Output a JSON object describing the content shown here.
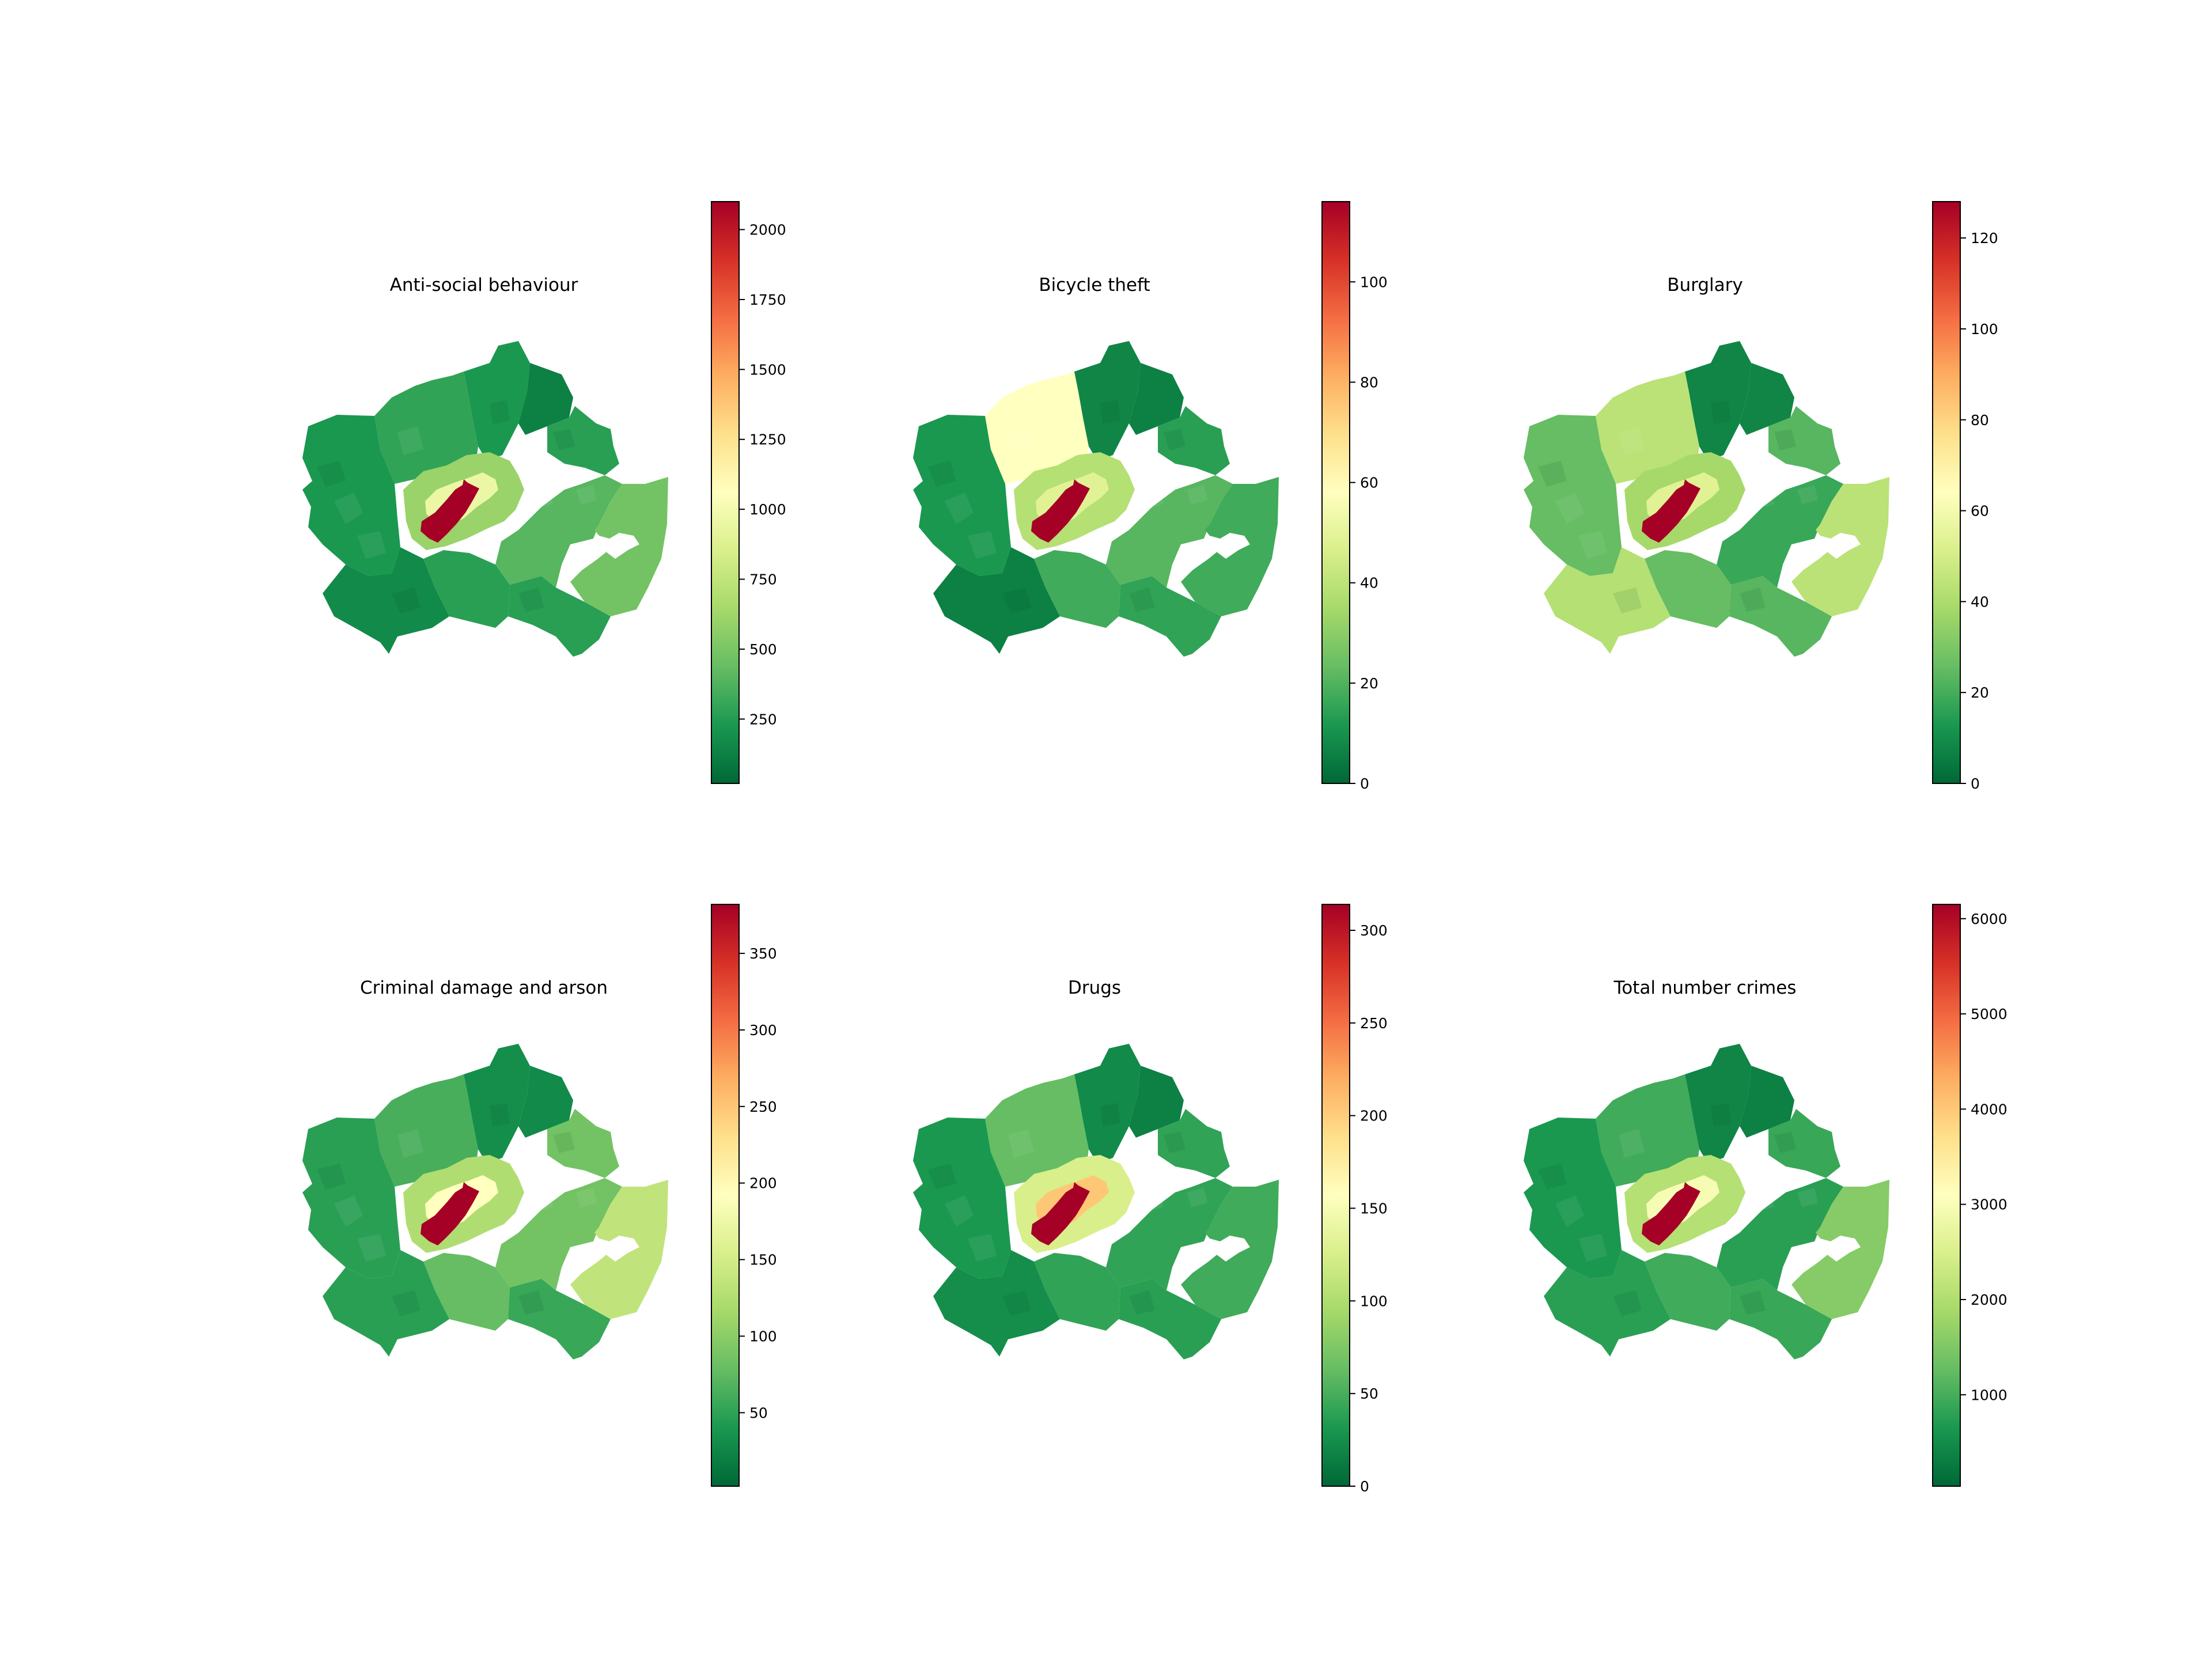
{
  "colormap": {
    "name": "RdYlGn_r",
    "stops": [
      "#006837",
      "#1a9850",
      "#66bd63",
      "#a6d96a",
      "#d9ef8b",
      "#ffffbf",
      "#fee08b",
      "#fdae61",
      "#f46d43",
      "#d73027",
      "#a50026"
    ]
  },
  "maps": [
    {
      "id": "anti-social-behaviour",
      "title": "Anti-social behaviour",
      "vmin": 20,
      "vmax": 2100,
      "ticks": [
        250,
        500,
        750,
        1000,
        1250,
        1500,
        1750,
        2000
      ],
      "tick_labels": [
        "250",
        "500",
        "750",
        "1000",
        "1250",
        "1500",
        "1750",
        "2000"
      ],
      "regions": {
        "north_west": 0.13,
        "north_centre": 0.1,
        "north_east": 0.05,
        "top_east": 0.12,
        "west": 0.1,
        "south_west": 0.07,
        "south_centre": 0.12,
        "south_east": 0.12,
        "east": 0.18,
        "far_east": 0.22,
        "inner_ring": 0.28,
        "inner_core": 0.45,
        "centre": 1.0
      }
    },
    {
      "id": "bicycle-theft",
      "title": "Bicycle theft",
      "vmin": 0,
      "vmax": 116,
      "ticks": [
        0,
        20,
        40,
        60,
        80,
        100
      ],
      "tick_labels": [
        "0",
        "20",
        "40",
        "60",
        "80",
        "100"
      ],
      "regions": {
        "north_west": 0.5,
        "north_centre": 0.06,
        "north_east": 0.05,
        "top_east": 0.12,
        "west": 0.1,
        "south_west": 0.05,
        "south_centre": 0.15,
        "south_east": 0.13,
        "east": 0.18,
        "far_east": 0.15,
        "inner_ring": 0.33,
        "inner_core": 0.42,
        "centre": 1.0
      }
    },
    {
      "id": "burglary",
      "title": "Burglary",
      "vmin": 0,
      "vmax": 128,
      "ticks": [
        0,
        20,
        40,
        60,
        80,
        100,
        120
      ],
      "tick_labels": [
        "0",
        "20",
        "40",
        "60",
        "80",
        "100",
        "120"
      ],
      "regions": {
        "north_west": 0.34,
        "north_centre": 0.06,
        "north_east": 0.06,
        "top_east": 0.18,
        "west": 0.2,
        "south_west": 0.33,
        "south_centre": 0.2,
        "south_east": 0.18,
        "east": 0.14,
        "far_east": 0.34,
        "inner_ring": 0.3,
        "inner_core": 0.42,
        "centre": 1.0
      }
    },
    {
      "id": "criminal-damage-and-arson",
      "title": "Criminal damage and arson",
      "vmin": 2,
      "vmax": 382,
      "ticks": [
        50,
        100,
        150,
        200,
        250,
        300,
        350
      ],
      "tick_labels": [
        "50",
        "100",
        "150",
        "200",
        "250",
        "300",
        "350"
      ],
      "regions": {
        "north_west": 0.16,
        "north_centre": 0.08,
        "north_east": 0.07,
        "top_east": 0.22,
        "west": 0.12,
        "south_west": 0.12,
        "south_centre": 0.2,
        "south_east": 0.14,
        "east": 0.22,
        "far_east": 0.35,
        "inner_ring": 0.32,
        "inner_core": 0.5,
        "centre": 1.0
      }
    },
    {
      "id": "drugs",
      "title": "Drugs",
      "vmin": 0,
      "vmax": 314,
      "ticks": [
        0,
        50,
        100,
        150,
        200,
        250,
        300
      ],
      "tick_labels": [
        "0",
        "50",
        "100",
        "150",
        "200",
        "250",
        "300"
      ],
      "regions": {
        "north_west": 0.2,
        "north_centre": 0.07,
        "north_east": 0.05,
        "top_east": 0.13,
        "west": 0.1,
        "south_west": 0.08,
        "south_centre": 0.13,
        "south_east": 0.12,
        "east": 0.13,
        "far_east": 0.15,
        "inner_ring": 0.4,
        "inner_core": 0.65,
        "centre": 1.0
      }
    },
    {
      "id": "total-number-crimes",
      "title": "Total number crimes",
      "vmin": 40,
      "vmax": 6150,
      "ticks": [
        1000,
        2000,
        3000,
        4000,
        5000,
        6000
      ],
      "tick_labels": [
        "1000",
        "2000",
        "3000",
        "4000",
        "5000",
        "6000"
      ],
      "regions": {
        "north_west": 0.15,
        "north_centre": 0.06,
        "north_east": 0.05,
        "top_east": 0.14,
        "west": 0.1,
        "south_west": 0.12,
        "south_centre": 0.15,
        "south_east": 0.14,
        "east": 0.12,
        "far_east": 0.25,
        "inner_ring": 0.33,
        "inner_core": 0.48,
        "centre": 1.0
      }
    }
  ]
}
